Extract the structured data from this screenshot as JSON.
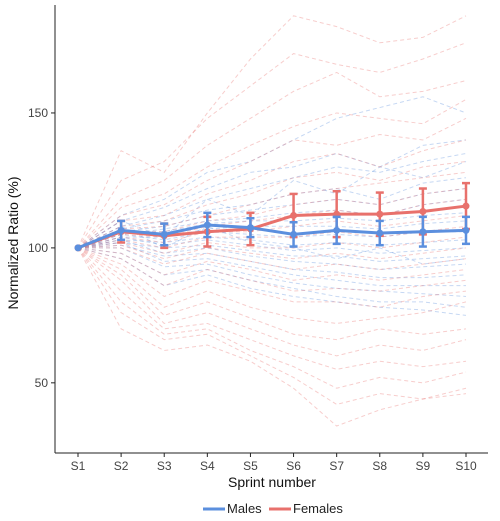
{
  "chart_data": {
    "type": "line",
    "xlabel": "Sprint number",
    "ylabel": "Normalized Ratio (%)",
    "categories": [
      "S1",
      "S2",
      "S3",
      "S4",
      "S5",
      "S6",
      "S7",
      "S8",
      "S9",
      "S10"
    ],
    "y_ticks": [
      50,
      100,
      150
    ],
    "ylim": [
      24,
      190
    ],
    "grid": false,
    "legend_position": "bottom",
    "series": [
      {
        "name": "Males",
        "color": "#5b8fde",
        "values": [
          100,
          106.5,
          105,
          108.5,
          107.5,
          105,
          106.5,
          105.5,
          106,
          106.5
        ],
        "error": [
          0,
          3.5,
          4,
          4.5,
          3.5,
          4.5,
          5,
          4.5,
          5.5,
          5
        ]
      },
      {
        "name": "Females",
        "color": "#e8716c",
        "values": [
          100,
          106,
          104.5,
          106,
          107,
          112,
          112.5,
          112.5,
          113.5,
          115.5
        ],
        "error": [
          0,
          4,
          4.5,
          5.5,
          6,
          8,
          8.5,
          8,
          8.5,
          8.5
        ]
      }
    ],
    "individual_traces": {
      "males": [
        [
          100,
          112,
          118,
          128,
          132,
          140,
          148,
          152,
          156,
          150
        ],
        [
          100,
          110,
          115,
          122,
          128,
          130,
          135,
          130,
          138,
          140
        ],
        [
          100,
          108,
          112,
          118,
          122,
          126,
          130,
          128,
          132,
          135
        ],
        [
          100,
          107,
          110,
          114,
          116,
          120,
          122,
          118,
          124,
          126
        ],
        [
          100,
          106,
          108,
          112,
          114,
          116,
          118,
          116,
          120,
          122
        ],
        [
          100,
          105,
          107,
          110,
          111,
          113,
          114,
          112,
          116,
          118
        ],
        [
          100,
          106,
          106,
          109,
          110,
          110,
          111,
          110,
          112,
          113
        ],
        [
          100,
          104,
          104,
          107,
          108,
          108,
          108,
          107,
          109,
          110
        ],
        [
          100,
          105,
          103,
          106,
          105,
          104,
          105,
          104,
          106,
          106
        ],
        [
          100,
          103,
          102,
          104,
          103,
          101,
          102,
          101,
          102,
          103
        ],
        [
          100,
          104,
          101,
          103,
          101,
          99,
          100,
          98,
          99,
          100
        ],
        [
          100,
          102,
          100,
          101,
          99,
          97,
          97,
          95,
          96,
          97
        ],
        [
          100,
          103,
          98,
          100,
          97,
          95,
          94,
          92,
          93,
          94
        ],
        [
          100,
          101,
          97,
          98,
          95,
          92,
          91,
          89,
          89,
          90
        ],
        [
          100,
          102,
          95,
          96,
          93,
          90,
          88,
          86,
          86,
          86
        ],
        [
          100,
          100,
          93,
          94,
          90,
          87,
          85,
          84,
          83,
          82
        ],
        [
          100,
          98,
          90,
          92,
          88,
          85,
          82,
          80,
          80,
          78
        ],
        [
          100,
          96,
          86,
          90,
          85,
          82,
          80,
          78,
          77,
          75
        ],
        [
          100,
          110,
          104,
          118,
          112,
          125,
          120,
          130,
          126,
          132
        ],
        [
          100,
          108,
          100,
          108,
          102,
          100,
          96,
          100,
          94,
          96
        ]
      ],
      "females": [
        [
          100,
          136,
          128,
          150,
          170,
          186,
          182,
          176,
          178,
          186
        ],
        [
          100,
          125,
          132,
          148,
          160,
          172,
          168,
          165,
          170,
          176
        ],
        [
          100,
          118,
          125,
          138,
          148,
          158,
          165,
          156,
          158,
          162
        ],
        [
          100,
          115,
          120,
          130,
          138,
          145,
          150,
          148,
          146,
          155
        ],
        [
          100,
          112,
          116,
          125,
          132,
          140,
          138,
          142,
          140,
          148
        ],
        [
          100,
          110,
          112,
          120,
          125,
          132,
          135,
          130,
          136,
          140
        ],
        [
          100,
          108,
          110,
          116,
          120,
          126,
          128,
          125,
          130,
          132
        ],
        [
          100,
          107,
          108,
          112,
          116,
          120,
          122,
          124,
          126,
          128
        ],
        [
          100,
          106,
          106,
          110,
          112,
          116,
          118,
          116,
          120,
          122
        ],
        [
          100,
          105,
          104,
          108,
          110,
          112,
          114,
          112,
          116,
          118
        ],
        [
          100,
          104,
          102,
          106,
          106,
          108,
          110,
          108,
          110,
          112
        ],
        [
          100,
          103,
          100,
          104,
          104,
          104,
          106,
          104,
          106,
          108
        ],
        [
          100,
          102,
          98,
          102,
          100,
          100,
          102,
          100,
          102,
          104
        ],
        [
          100,
          101,
          96,
          100,
          98,
          96,
          98,
          96,
          98,
          100
        ],
        [
          100,
          100,
          94,
          98,
          95,
          92,
          94,
          92,
          94,
          96
        ],
        [
          100,
          98,
          90,
          95,
          92,
          88,
          90,
          88,
          90,
          92
        ],
        [
          100,
          96,
          86,
          92,
          88,
          84,
          85,
          84,
          86,
          88
        ],
        [
          100,
          94,
          82,
          88,
          84,
          80,
          80,
          78,
          82,
          84
        ],
        [
          100,
          92,
          78,
          84,
          78,
          74,
          72,
          74,
          76,
          80
        ],
        [
          100,
          90,
          75,
          80,
          74,
          68,
          66,
          70,
          68,
          70
        ],
        [
          100,
          88,
          72,
          76,
          70,
          64,
          60,
          64,
          62,
          66
        ],
        [
          100,
          84,
          70,
          72,
          66,
          60,
          55,
          58,
          56,
          58
        ],
        [
          100,
          80,
          68,
          70,
          62,
          56,
          48,
          52,
          50,
          54
        ],
        [
          100,
          76,
          66,
          68,
          60,
          52,
          42,
          46,
          44,
          48
        ],
        [
          100,
          70,
          62,
          64,
          58,
          48,
          34,
          40,
          44,
          46
        ]
      ]
    }
  }
}
